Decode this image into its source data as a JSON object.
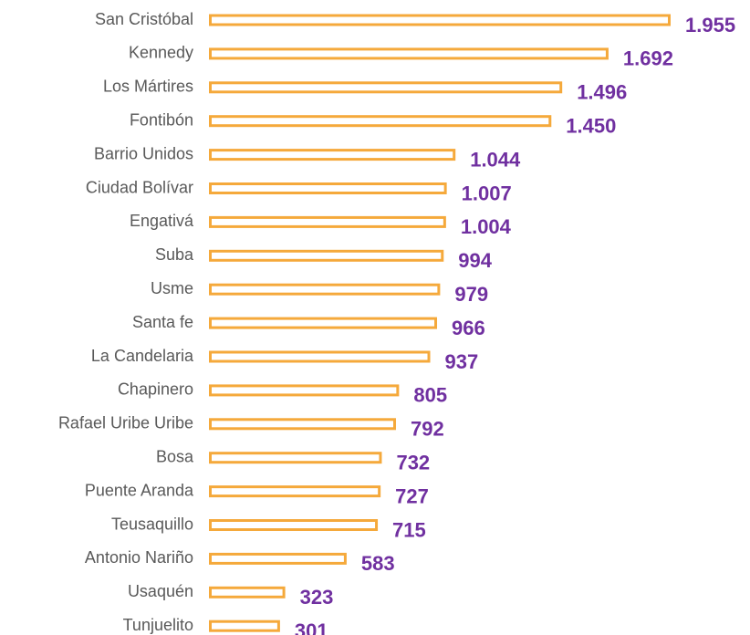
{
  "chart_data": {
    "type": "bar",
    "orientation": "horizontal",
    "categories": [
      "San Cristóbal",
      "Kennedy",
      "Los Mártires",
      "Fontibón",
      "Barrio Unidos",
      "Ciudad Bolívar",
      "Engativá",
      "Suba",
      "Usme",
      "Santa fe",
      "La Candelaria",
      "Chapinero",
      "Rafael Uribe Uribe",
      "Bosa",
      "Puente Aranda",
      "Teusaquillo",
      "Antonio Nariño",
      "Usaquén",
      "Tunjuelito"
    ],
    "values": [
      1955,
      1692,
      1496,
      1450,
      1044,
      1007,
      1004,
      994,
      979,
      966,
      937,
      805,
      792,
      732,
      727,
      715,
      583,
      323,
      301
    ],
    "value_labels": [
      "1.955",
      "1.692",
      "1.496",
      "1.450",
      "1.044",
      "1.007",
      "1.004",
      "994",
      "979",
      "966",
      "937",
      "805",
      "792",
      "732",
      "727",
      "715",
      "583",
      "323",
      "301"
    ],
    "color": "#f5a93b",
    "label_color": "#7030a0"
  }
}
